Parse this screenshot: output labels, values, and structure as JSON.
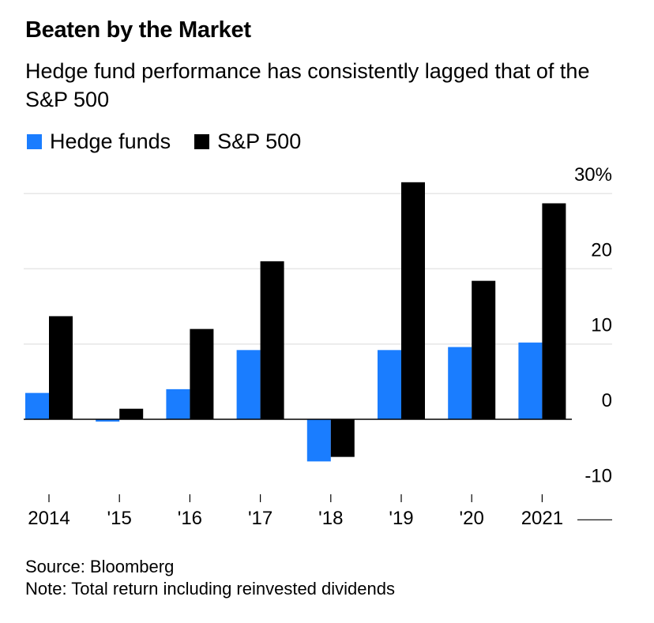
{
  "chart_data": {
    "type": "bar",
    "title": "Beaten by the Market",
    "subtitle": "Hedge fund performance has consistently lagged that of the S&P 500",
    "categories": [
      "2014",
      "'15",
      "'16",
      "'17",
      "'18",
      "'19",
      "'20",
      "2021"
    ],
    "series": [
      {
        "name": "Hedge funds",
        "color": "#1a7dff",
        "values": [
          3.5,
          -0.3,
          4.0,
          9.2,
          -5.6,
          9.2,
          9.6,
          10.2
        ]
      },
      {
        "name": "S&P 500",
        "color": "#000000",
        "values": [
          13.7,
          1.4,
          12.0,
          21.0,
          -5.0,
          31.5,
          18.4,
          28.7
        ]
      }
    ],
    "ylim": [
      -10,
      30
    ],
    "yticks": [
      {
        "value": 30,
        "label": "30%"
      },
      {
        "value": 20,
        "label": "20"
      },
      {
        "value": 10,
        "label": "10"
      },
      {
        "value": 0,
        "label": "0"
      },
      {
        "value": -10,
        "label": "-10"
      }
    ],
    "grid": true,
    "legend_position": "top-left",
    "source": "Source: Bloomberg",
    "note": "Note: Total return including reinvested dividends"
  }
}
